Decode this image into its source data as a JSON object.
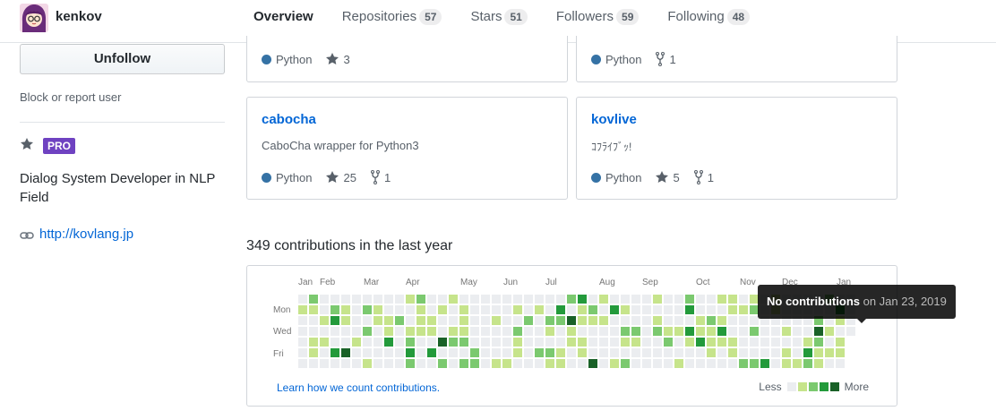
{
  "header": {
    "username": "kenkov",
    "tabs": [
      {
        "label": "Overview",
        "count": null,
        "active": true
      },
      {
        "label": "Repositories",
        "count": "57"
      },
      {
        "label": "Stars",
        "count": "51"
      },
      {
        "label": "Followers",
        "count": "59"
      },
      {
        "label": "Following",
        "count": "48"
      }
    ]
  },
  "sidebar": {
    "follow_button": "Unfollow",
    "block_link": "Block or report user",
    "pro_badge": "PRO",
    "bio": "Dialog System Developer in NLP Field",
    "blog_url": "http://kovlang.jp",
    "icons": {
      "star": "star-icon",
      "link": "link-icon"
    }
  },
  "repos": [
    {
      "name": "",
      "description": "",
      "language": "Python",
      "stars": "3",
      "forks": ""
    },
    {
      "name": "",
      "description": "",
      "language": "Python",
      "stars": "",
      "forks": "1"
    },
    {
      "name": "cabocha",
      "description": "CaboCha wrapper for Python3",
      "language": "Python",
      "stars": "25",
      "forks": "1"
    },
    {
      "name": "kovlive",
      "description": "ｺﾌﾗｲﾌﾞｯ!",
      "language": "Python",
      "stars": "5",
      "forks": "1"
    }
  ],
  "language_color": "#3572A5",
  "contributions": {
    "title": "349 contributions in the last year",
    "months": [
      "Jan",
      "Feb",
      "Mar",
      "Apr",
      "May",
      "Jun",
      "Jul",
      "Aug",
      "Sep",
      "Oct",
      "Nov",
      "Dec",
      "Jan"
    ],
    "days": [
      "Mon",
      "Wed",
      "Fri"
    ],
    "learn_link": "Learn how we count contributions.",
    "legend_less": "Less",
    "legend_more": "More",
    "level_colors": [
      "#ebedf0",
      "#c6e48b",
      "#7bc96f",
      "#239a3b",
      "#196127"
    ],
    "tooltip_strong": "No contributions",
    "tooltip_rest": " on Jan 23, 2019"
  }
}
